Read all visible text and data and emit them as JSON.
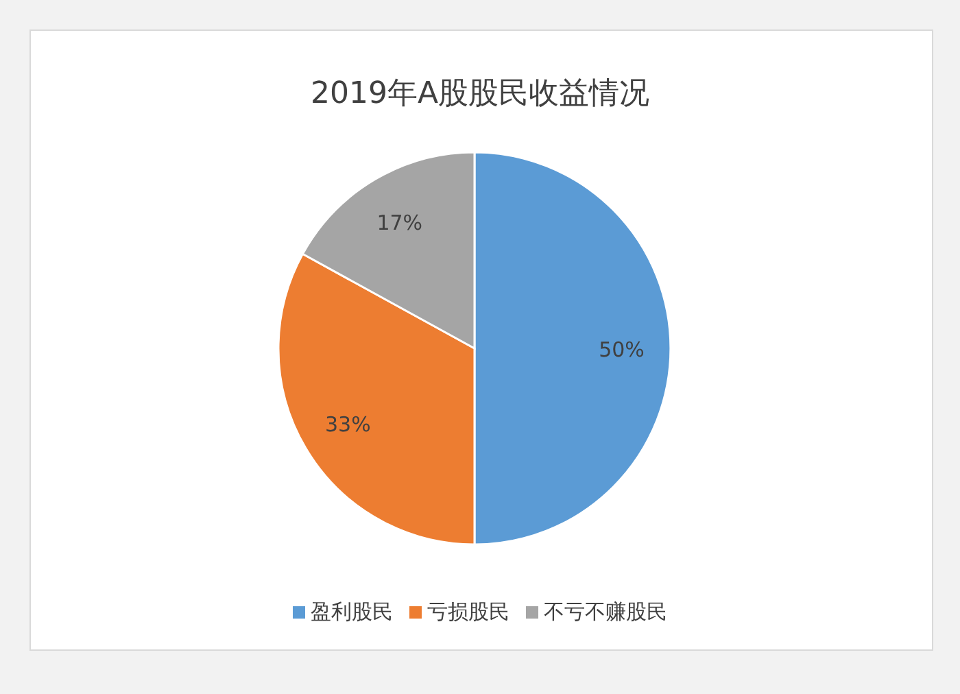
{
  "chart_data": {
    "type": "pie",
    "title": "2019年A股股民收益情况",
    "categories": [
      "盈利股民",
      "亏损股民",
      "不亏不赚股民"
    ],
    "values": [
      50,
      33,
      17
    ],
    "value_labels": [
      "50%",
      "33%",
      "17%"
    ],
    "colors": [
      "#5b9bd5",
      "#ed7d31",
      "#a5a5a5"
    ],
    "legend": "bottom"
  }
}
